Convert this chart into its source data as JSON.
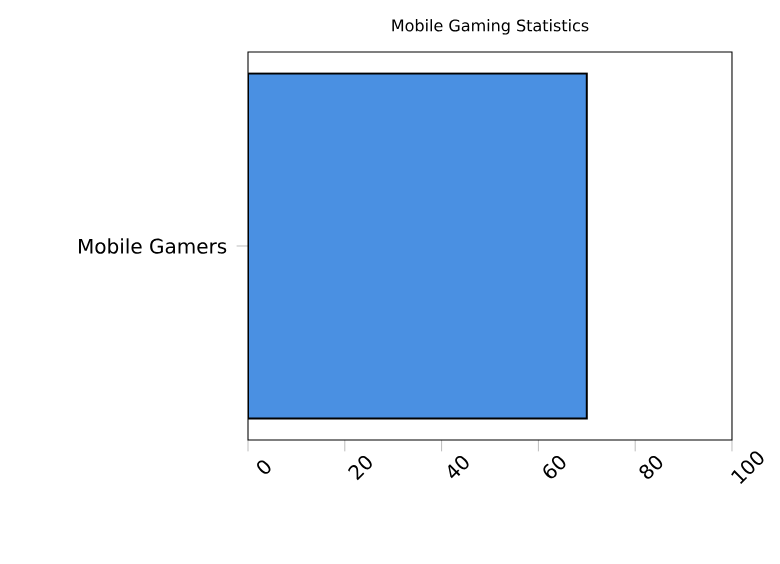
{
  "chart_data": {
    "type": "bar",
    "orientation": "horizontal",
    "title": "Mobile Gaming Statistics",
    "categories": [
      "Mobile Gamers"
    ],
    "values": [
      70
    ],
    "color": "#4a90e2",
    "xlim": [
      0,
      100
    ],
    "xticks": [
      0,
      20,
      40,
      60,
      80,
      100
    ],
    "grid": false
  }
}
